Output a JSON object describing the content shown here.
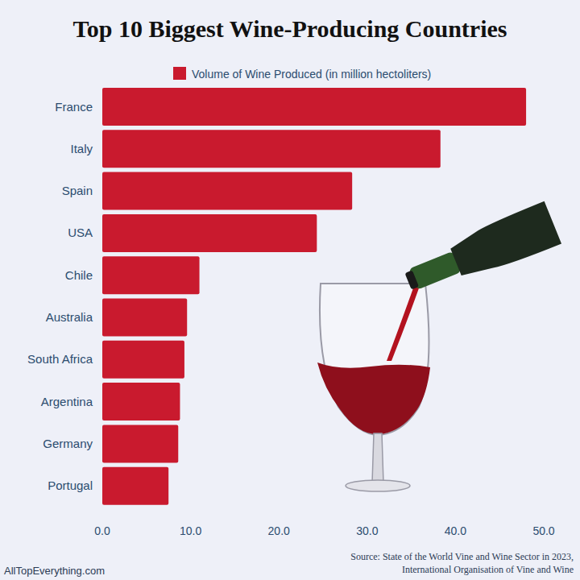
{
  "chart_data": {
    "type": "bar",
    "orientation": "horizontal",
    "title": "Top 10 Biggest Wine-Producing Countries",
    "categories": [
      "France",
      "Italy",
      "Spain",
      "USA",
      "Chile",
      "Australia",
      "South Africa",
      "Argentina",
      "Germany",
      "Portugal"
    ],
    "series": [
      {
        "name": "Volume of Wine Produced (in million hectoliters)",
        "color": "#c91a2e",
        "values": [
          48.0,
          38.3,
          28.3,
          24.3,
          11.0,
          9.6,
          9.3,
          8.8,
          8.6,
          7.5
        ]
      }
    ],
    "xlim": [
      0,
      50
    ],
    "xticks": [
      {
        "value": 0,
        "label": "0.0"
      },
      {
        "value": 10,
        "label": "10.0"
      },
      {
        "value": 20,
        "label": "20.0"
      },
      {
        "value": 30,
        "label": "30.0"
      },
      {
        "value": 40,
        "label": "40.0"
      },
      {
        "value": 50,
        "label": "50.0"
      }
    ],
    "grid": false,
    "legend": "top",
    "credit": "AllTopEverything.com",
    "source": [
      "Source: State of the World Vine and Wine Sector in 2023,",
      "International Organisation of Vine and Wine"
    ]
  }
}
